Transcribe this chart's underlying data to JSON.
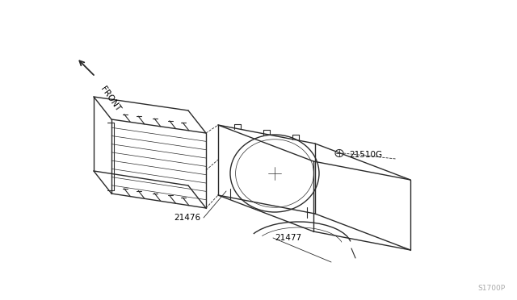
{
  "background_color": "#ffffff",
  "line_color": "#2a2a2a",
  "label_color": "#000000",
  "figsize": [
    6.4,
    3.72
  ],
  "dpi": 100,
  "watermark_text": "S1700P",
  "front_text": "FRONT"
}
